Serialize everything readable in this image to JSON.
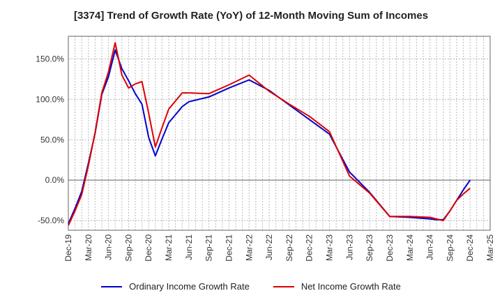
{
  "chart_data": {
    "type": "line",
    "title": "[3374]  Trend of Growth Rate (YoY) of 12-Month Moving Sum of Incomes",
    "x_tick_labels": [
      "Dec-19",
      "Mar-20",
      "Jun-20",
      "Sep-20",
      "Dec-20",
      "Mar-21",
      "Jun-21",
      "Sep-21",
      "Dec-21",
      "Mar-22",
      "Jun-22",
      "Sep-22",
      "Dec-22",
      "Mar-23",
      "Jun-23",
      "Sep-23",
      "Dec-23",
      "Mar-24",
      "Jun-24",
      "Sep-24",
      "Dec-24",
      "Mar-25"
    ],
    "x": [
      "Dec-19",
      "Jan-20",
      "Feb-20",
      "Mar-20",
      "Apr-20",
      "May-20",
      "Jun-20",
      "Jul-20",
      "Aug-20",
      "Sep-20",
      "Oct-20",
      "Nov-20",
      "Dec-20",
      "Jan-21",
      "Feb-21",
      "Mar-21",
      "Apr-21",
      "May-21",
      "Jun-21",
      "Sep-21",
      "Dec-21",
      "Mar-22",
      "Jun-22",
      "Sep-22",
      "Dec-22",
      "Mar-23",
      "Jun-23",
      "Sep-23",
      "Dec-23",
      "Mar-24",
      "Jun-24",
      "Jul-24",
      "Aug-24",
      "Sep-24",
      "Oct-24",
      "Nov-24",
      "Dec-24"
    ],
    "y_ticks": [
      150,
      100,
      50,
      0,
      -50
    ],
    "y_tick_labels": [
      "150.0%",
      "100.0%",
      "50.0%",
      "0.0%",
      "-50.0%"
    ],
    "ylim": [
      -62,
      178
    ],
    "grid": true,
    "legend_position": "bottom",
    "series": [
      {
        "name": "Ordinary Income Growth Rate",
        "color": "#0000cc",
        "values": [
          -54,
          -35,
          -14,
          21,
          58,
          106,
          128,
          161,
          138,
          123,
          107,
          94,
          53,
          30,
          51,
          71,
          81,
          91,
          97,
          103,
          114,
          124,
          111,
          93,
          75,
          57,
          10,
          -15,
          -45,
          -46,
          -48,
          -49,
          -49,
          -38,
          -25,
          -12,
          0
        ]
      },
      {
        "name": "Net Income Growth Rate",
        "color": "#dd0000",
        "values": [
          -56,
          -38,
          -18,
          18,
          59,
          108,
          134,
          170,
          130,
          114,
          119,
          122,
          83,
          41,
          65,
          88,
          98,
          108,
          108,
          107,
          118,
          130,
          110,
          94,
          79,
          60,
          5,
          -16,
          -45,
          -45,
          -46,
          -48,
          -50,
          -38,
          -25,
          -17,
          -10
        ]
      }
    ]
  }
}
